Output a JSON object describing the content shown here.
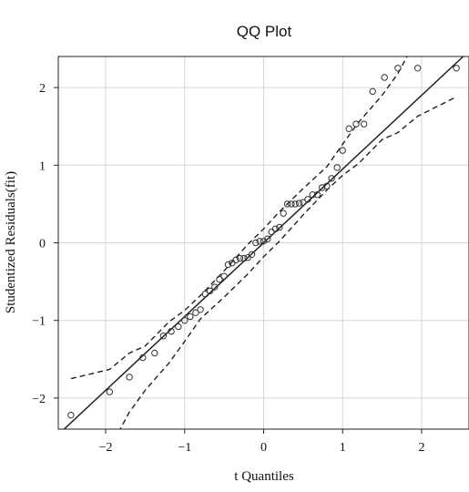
{
  "chart_data": {
    "type": "scatter",
    "title": "QQ Plot",
    "xlabel": "t Quantiles",
    "ylabel": "Studentized Residuals(fit)",
    "xlim": [
      -2.6,
      2.6
    ],
    "ylim": [
      -2.4,
      2.4
    ],
    "grid": true,
    "x_ticks": [
      -2,
      -1,
      0,
      1,
      2
    ],
    "y_ticks": [
      -2,
      -1,
      0,
      1,
      2
    ],
    "x_tick_labels": [
      "−2",
      "−1",
      "0",
      "1",
      "2"
    ],
    "y_tick_labels": [
      "−2",
      "−1",
      "0",
      "1",
      "2"
    ],
    "points": {
      "x": [
        -2.44,
        -1.95,
        -1.7,
        -1.53,
        -1.38,
        -1.27,
        -1.17,
        -1.08,
        -1.0,
        -0.93,
        -0.86,
        -0.8,
        -0.74,
        -0.68,
        -0.62,
        -0.56,
        -0.5,
        -0.45,
        -0.4,
        -0.35,
        -0.3,
        -0.25,
        -0.2,
        -0.15,
        -0.1,
        -0.05,
        0.0,
        0.05,
        0.1,
        0.15,
        0.2,
        0.25,
        0.3,
        0.35,
        0.4,
        0.45,
        0.5,
        0.56,
        0.62,
        0.68,
        0.74,
        0.8,
        0.86,
        0.93,
        1.0,
        1.08,
        1.17,
        1.27,
        1.38,
        1.53,
        1.7,
        1.95,
        2.44
      ],
      "y": [
        -2.22,
        -1.92,
        -1.73,
        -1.48,
        -1.42,
        -1.2,
        -1.14,
        -1.08,
        -1.0,
        -0.95,
        -0.9,
        -0.86,
        -0.66,
        -0.62,
        -0.57,
        -0.47,
        -0.43,
        -0.28,
        -0.26,
        -0.22,
        -0.2,
        -0.2,
        -0.19,
        -0.15,
        0.0,
        0.02,
        0.02,
        0.05,
        0.14,
        0.18,
        0.2,
        0.38,
        0.5,
        0.5,
        0.5,
        0.51,
        0.52,
        0.56,
        0.62,
        0.62,
        0.71,
        0.73,
        0.83,
        0.97,
        1.19,
        1.47,
        1.53,
        1.53,
        1.95,
        2.13,
        2.25,
        2.25,
        2.25
      ]
    },
    "reference_line": {
      "intercept": 0,
      "slope": 0.95
    },
    "confidence_band": {
      "x": [
        -2.44,
        -1.95,
        -1.7,
        -1.5,
        -1.2,
        -1.0,
        -0.8,
        -0.5,
        -0.2,
        0.0,
        0.2,
        0.5,
        0.8,
        1.0,
        1.2,
        1.5,
        1.7,
        1.95,
        2.44
      ],
      "upper": [
        -1.75,
        -1.63,
        -1.42,
        -1.33,
        -1.02,
        -0.87,
        -0.68,
        -0.36,
        -0.02,
        0.18,
        0.4,
        0.7,
        0.98,
        1.27,
        1.55,
        1.9,
        2.18,
        2.65,
        3.3
      ],
      "lower": [
        -3.3,
        -2.65,
        -2.18,
        -1.9,
        -1.55,
        -1.27,
        -0.98,
        -0.7,
        -0.4,
        -0.18,
        0.02,
        0.36,
        0.68,
        0.87,
        1.02,
        1.33,
        1.42,
        1.63,
        1.88
      ]
    }
  }
}
